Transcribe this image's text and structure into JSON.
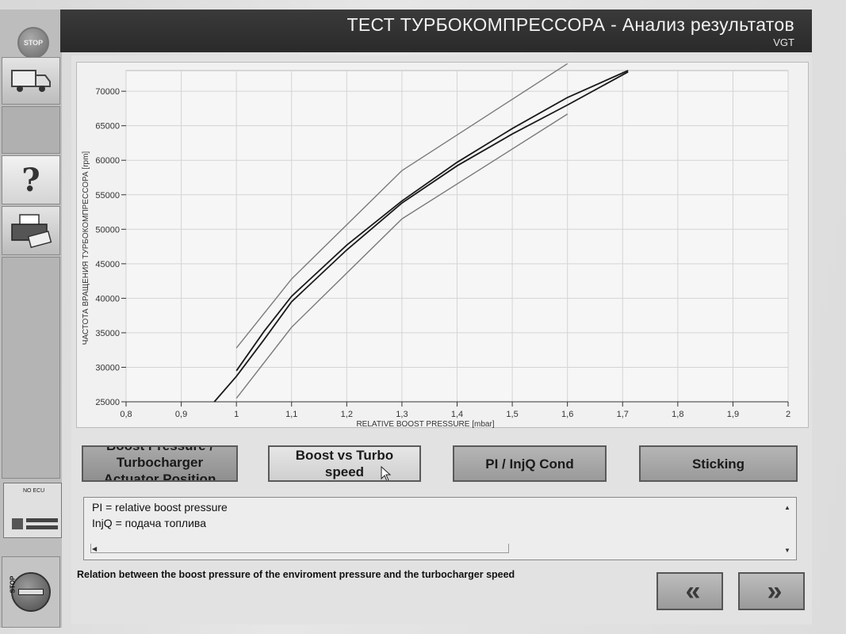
{
  "header": {
    "title": "ТЕСТ ТУРБОКОМПРЕССОРА - Анализ результатов",
    "subtitle": "VGT"
  },
  "sidebar": {
    "stop_top": "STOP",
    "no_ecu": "NO ECU",
    "stop_bottom": "STOP"
  },
  "buttons": {
    "boost_actuator": "Boost Pressure / Turbocharger Actuator Position",
    "boost_vs_turbo": "Boost vs Turbo speed",
    "pi_injq": "PI / InjQ Cond",
    "sticking": "Sticking"
  },
  "info": {
    "line1": "PI = relative boost pressure",
    "line2": "InjQ = подача топлива"
  },
  "description": "Relation between the boost pressure of the enviroment pressure and the turbocharger speed",
  "nav": {
    "back": "«",
    "forward": "»"
  },
  "chart_data": {
    "type": "line",
    "xlabel": "RELATIVE BOOST PRESSURE [mbar]",
    "ylabel": "ЧАСТОТА ВРАЩЕНИЯ ТУРБОКОМПРЕССОРА [rpm]",
    "xlim": [
      0.8,
      2.0
    ],
    "ylim": [
      25000,
      73000
    ],
    "xticks": [
      "0,8",
      "0,9",
      "1",
      "1,1",
      "1,2",
      "1,3",
      "1,4",
      "1,5",
      "1,6",
      "1,7",
      "1,8",
      "1,9",
      "2"
    ],
    "yticks": [
      "25000",
      "30000",
      "35000",
      "40000",
      "45000",
      "50000",
      "55000",
      "60000",
      "65000",
      "70000"
    ],
    "grid": true,
    "series": [
      {
        "values_x": [
          1.0,
          1.1,
          1.3,
          1.6
        ],
        "values_y": [
          32800,
          42800,
          58500,
          74000
        ],
        "color": "#7a7a7a"
      },
      {
        "values_x": [
          1.0,
          1.1,
          1.3,
          1.6
        ],
        "values_y": [
          25500,
          35800,
          51500,
          66700
        ],
        "color": "#7a7a7a"
      },
      {
        "values_x": [
          0.96,
          1.0,
          1.05,
          1.1,
          1.2,
          1.3,
          1.4,
          1.5,
          1.6,
          1.71
        ],
        "values_y": [
          25000,
          28700,
          34000,
          39500,
          47000,
          53800,
          59200,
          63800,
          68000,
          72800
        ],
        "color": "#1a1a1a"
      },
      {
        "values_x": [
          1.0,
          1.05,
          1.1,
          1.2,
          1.3,
          1.4,
          1.5,
          1.6,
          1.71
        ],
        "values_y": [
          29500,
          35200,
          40300,
          47700,
          54100,
          59700,
          64600,
          69100,
          73000
        ],
        "color": "#1a1a1a"
      }
    ]
  }
}
